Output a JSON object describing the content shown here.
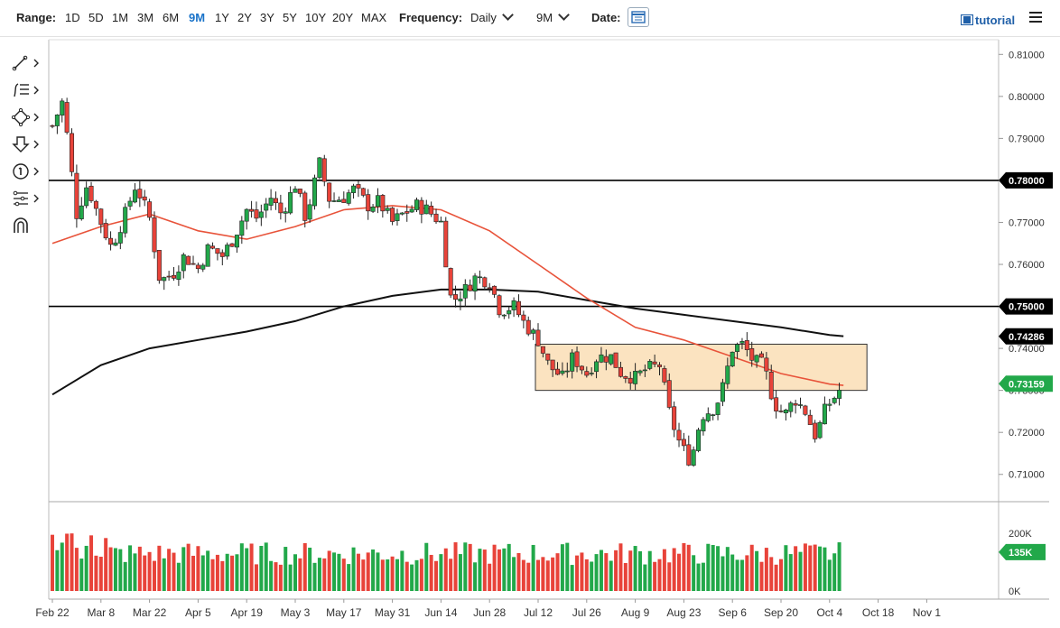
{
  "toolbar": {
    "range_label": "Range:",
    "ranges": [
      "1D",
      "5D",
      "1M",
      "3M",
      "6M",
      "9M",
      "1Y",
      "2Y",
      "3Y",
      "5Y",
      "10Y",
      "20Y",
      "MAX"
    ],
    "active_range": "9M",
    "frequency_label": "Frequency:",
    "frequency_value": "Daily",
    "period_value": "9M",
    "date_label": "Date:",
    "tutorial_label": "tutorial"
  },
  "tools": [
    "line-tool-icon",
    "fib-tool-icon",
    "shape-tool-icon",
    "arrow-down-tool-icon",
    "annotation-number-icon",
    "pitchfork-tool-icon",
    "magnet-icon"
  ],
  "chart_data": {
    "type": "candlestick",
    "x_ticks": [
      "Feb 22",
      "Mar 8",
      "Mar 22",
      "Apr 5",
      "Apr 19",
      "May 3",
      "May 17",
      "May 31",
      "Jun 14",
      "Jun 28",
      "Jul 12",
      "Jul 26",
      "Aug 9",
      "Aug 23",
      "Sep 6",
      "Sep 20",
      "Oct 4",
      "Oct 18",
      "Nov 1"
    ],
    "price_ticks": [
      "0.81000",
      "0.80000",
      "0.79000",
      "0.78000",
      "0.77000",
      "0.76000",
      "0.75000",
      "0.74000",
      "0.73000",
      "0.72000",
      "0.71000"
    ],
    "ylim": [
      0.7035,
      0.8135
    ],
    "horizontal_lines": [
      {
        "value": 0.78,
        "label": "0.78000"
      },
      {
        "value": 0.75,
        "label": "0.75000"
      }
    ],
    "price_labels": [
      {
        "value": 0.78,
        "label": "0.78000",
        "color": "#000000"
      },
      {
        "value": 0.75,
        "label": "0.75000",
        "color": "#000000"
      },
      {
        "value": 0.74286,
        "label": "0.74286",
        "color": "#000000"
      },
      {
        "value": 0.73159,
        "label": "0.73159",
        "color": "#22a84a"
      }
    ],
    "range_box": {
      "x_start": "Jul 12",
      "x_end": "Oct 8",
      "y_low": 0.73,
      "y_high": 0.741,
      "fill": "#fbe3c0",
      "stroke": "#333333"
    },
    "ma_fast_color": "#e8533a",
    "ma_slow_color": "#111111",
    "up_color": "#22a84a",
    "down_color": "#e8433a",
    "price_path": [
      [
        "Feb 22",
        0.793
      ],
      [
        "Feb 25",
        0.799
      ],
      [
        "Mar 1",
        0.772
      ],
      [
        "Mar 4",
        0.779
      ],
      [
        "Mar 8",
        0.77
      ],
      [
        "Mar 11",
        0.764
      ],
      [
        "Mar 15",
        0.772
      ],
      [
        "Mar 18",
        0.779
      ],
      [
        "Mar 22",
        0.771
      ],
      [
        "Mar 25",
        0.756
      ],
      [
        "Mar 29",
        0.758
      ],
      [
        "Apr 1",
        0.762
      ],
      [
        "Apr 5",
        0.759
      ],
      [
        "Apr 8",
        0.764
      ],
      [
        "Apr 12",
        0.762
      ],
      [
        "Apr 15",
        0.766
      ],
      [
        "Apr 19",
        0.773
      ],
      [
        "Apr 22",
        0.771
      ],
      [
        "Apr 26",
        0.776
      ],
      [
        "Apr 29",
        0.772
      ],
      [
        "May 3",
        0.779
      ],
      [
        "May 6",
        0.771
      ],
      [
        "May 10",
        0.784
      ],
      [
        "May 13",
        0.775
      ],
      [
        "May 17",
        0.776
      ],
      [
        "May 20",
        0.778
      ],
      [
        "May 24",
        0.774
      ],
      [
        "May 27",
        0.775
      ],
      [
        "May 31",
        0.77
      ],
      [
        "Jun 3",
        0.772
      ],
      [
        "Jun 7",
        0.774
      ],
      [
        "Jun 10",
        0.773
      ],
      [
        "Jun 14",
        0.77
      ],
      [
        "Jun 17",
        0.751
      ],
      [
        "Jun 21",
        0.754
      ],
      [
        "Jun 24",
        0.757
      ],
      [
        "Jun 28",
        0.756
      ],
      [
        "Jul 1",
        0.749
      ],
      [
        "Jul 5",
        0.75
      ],
      [
        "Jul 8",
        0.746
      ],
      [
        "Jul 12",
        0.742
      ],
      [
        "Jul 15",
        0.736
      ],
      [
        "Jul 19",
        0.733
      ],
      [
        "Jul 22",
        0.738
      ],
      [
        "Jul 26",
        0.734
      ],
      [
        "Jul 29",
        0.738
      ],
      [
        "Aug 2",
        0.738
      ],
      [
        "Aug 5",
        0.734
      ],
      [
        "Aug 9",
        0.733
      ],
      [
        "Aug 12",
        0.735
      ],
      [
        "Aug 16",
        0.736
      ],
      [
        "Aug 19",
        0.724
      ],
      [
        "Aug 22",
        0.717
      ],
      [
        "Aug 25",
        0.713
      ],
      [
        "Aug 28",
        0.724
      ],
      [
        "Sep 1",
        0.726
      ],
      [
        "Sep 3",
        0.73
      ],
      [
        "Sep 6",
        0.74
      ],
      [
        "Sep 9",
        0.741
      ],
      [
        "Sep 12",
        0.737
      ],
      [
        "Sep 15",
        0.736
      ],
      [
        "Sep 18",
        0.727
      ],
      [
        "Sep 21",
        0.724
      ],
      [
        "Sep 24",
        0.728
      ],
      [
        "Sep 27",
        0.725
      ],
      [
        "Sep 30",
        0.719
      ],
      [
        "Oct 3",
        0.726
      ],
      [
        "Oct 6",
        0.729
      ],
      [
        "Oct 8",
        0.7316
      ]
    ],
    "ma_fast_path": [
      [
        "Feb 22",
        0.765
      ],
      [
        "Mar 8",
        0.769
      ],
      [
        "Mar 22",
        0.772
      ],
      [
        "Apr 5",
        0.768
      ],
      [
        "Apr 19",
        0.766
      ],
      [
        "May 3",
        0.769
      ],
      [
        "May 17",
        0.773
      ],
      [
        "May 31",
        0.774
      ],
      [
        "Jun 14",
        0.773
      ],
      [
        "Jun 28",
        0.768
      ],
      [
        "Jul 12",
        0.76
      ],
      [
        "Jul 26",
        0.752
      ],
      [
        "Aug 9",
        0.745
      ],
      [
        "Aug 23",
        0.742
      ],
      [
        "Sep 6",
        0.738
      ],
      [
        "Sep 20",
        0.734
      ],
      [
        "Oct 4",
        0.7315
      ],
      [
        "Oct 8",
        0.7312
      ]
    ],
    "ma_slow_path": [
      [
        "Feb 22",
        0.729
      ],
      [
        "Mar 8",
        0.736
      ],
      [
        "Mar 22",
        0.74
      ],
      [
        "Apr 5",
        0.742
      ],
      [
        "Apr 19",
        0.744
      ],
      [
        "May 3",
        0.7465
      ],
      [
        "May 17",
        0.75
      ],
      [
        "May 31",
        0.7525
      ],
      [
        "Jun 14",
        0.754
      ],
      [
        "Jun 28",
        0.754
      ],
      [
        "Jul 12",
        0.7535
      ],
      [
        "Jul 26",
        0.7515
      ],
      [
        "Aug 9",
        0.7495
      ],
      [
        "Aug 23",
        0.748
      ],
      [
        "Sep 6",
        0.7465
      ],
      [
        "Sep 20",
        0.745
      ],
      [
        "Oct 4",
        0.7432
      ],
      [
        "Oct 8",
        0.7429
      ]
    ],
    "volume": {
      "ticks": [
        "200K",
        "0K"
      ],
      "latest_label": "135K",
      "latest_color": "#22a84a",
      "max": 260000
    }
  }
}
